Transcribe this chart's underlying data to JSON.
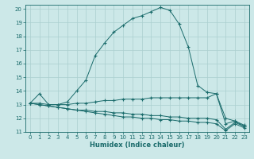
{
  "xlabel": "Humidex (Indice chaleur)",
  "bg_color": "#cce8e8",
  "grid_color": "#aacfcf",
  "line_color": "#1a6b6b",
  "xlim": [
    -0.5,
    23.5
  ],
  "ylim": [
    11,
    20.3
  ],
  "xticks": [
    0,
    1,
    2,
    3,
    4,
    5,
    6,
    7,
    8,
    9,
    10,
    11,
    12,
    13,
    14,
    15,
    16,
    17,
    18,
    19,
    20,
    21,
    22,
    23
  ],
  "yticks": [
    11,
    12,
    13,
    14,
    15,
    16,
    17,
    18,
    19,
    20
  ],
  "series": [
    {
      "x": [
        0,
        1,
        2,
        3,
        4,
        5,
        6,
        7,
        8,
        9,
        10,
        11,
        12,
        13,
        14,
        15,
        16,
        17,
        18,
        19,
        20,
        21,
        22,
        23
      ],
      "y": [
        13.1,
        13.8,
        13.0,
        13.0,
        13.2,
        14.0,
        14.8,
        16.6,
        17.5,
        18.3,
        18.8,
        19.3,
        19.5,
        19.8,
        20.1,
        19.9,
        18.9,
        17.2,
        14.4,
        13.9,
        13.8,
        11.6,
        11.8,
        11.4
      ]
    },
    {
      "x": [
        0,
        1,
        2,
        3,
        4,
        5,
        6,
        7,
        8,
        9,
        10,
        11,
        12,
        13,
        14,
        15,
        16,
        17,
        18,
        19,
        20,
        21,
        22,
        23
      ],
      "y": [
        13.1,
        13.1,
        13.0,
        13.0,
        13.0,
        13.1,
        13.1,
        13.2,
        13.3,
        13.3,
        13.4,
        13.4,
        13.4,
        13.5,
        13.5,
        13.5,
        13.5,
        13.5,
        13.5,
        13.5,
        13.8,
        12.0,
        11.8,
        11.5
      ]
    },
    {
      "x": [
        0,
        1,
        2,
        3,
        4,
        5,
        6,
        7,
        8,
        9,
        10,
        11,
        12,
        13,
        14,
        15,
        16,
        17,
        18,
        19,
        20,
        21,
        22,
        23
      ],
      "y": [
        13.1,
        13.0,
        12.9,
        12.8,
        12.7,
        12.6,
        12.6,
        12.5,
        12.5,
        12.4,
        12.4,
        12.3,
        12.3,
        12.2,
        12.2,
        12.1,
        12.1,
        12.0,
        12.0,
        12.0,
        11.9,
        11.2,
        11.7,
        11.4
      ]
    },
    {
      "x": [
        0,
        1,
        2,
        3,
        4,
        5,
        6,
        7,
        8,
        9,
        10,
        11,
        12,
        13,
        14,
        15,
        16,
        17,
        18,
        19,
        20,
        21,
        22,
        23
      ],
      "y": [
        13.1,
        13.0,
        12.9,
        12.8,
        12.7,
        12.6,
        12.5,
        12.4,
        12.3,
        12.2,
        12.1,
        12.1,
        12.0,
        12.0,
        11.9,
        11.9,
        11.8,
        11.8,
        11.7,
        11.7,
        11.6,
        11.1,
        11.6,
        11.3
      ]
    }
  ]
}
